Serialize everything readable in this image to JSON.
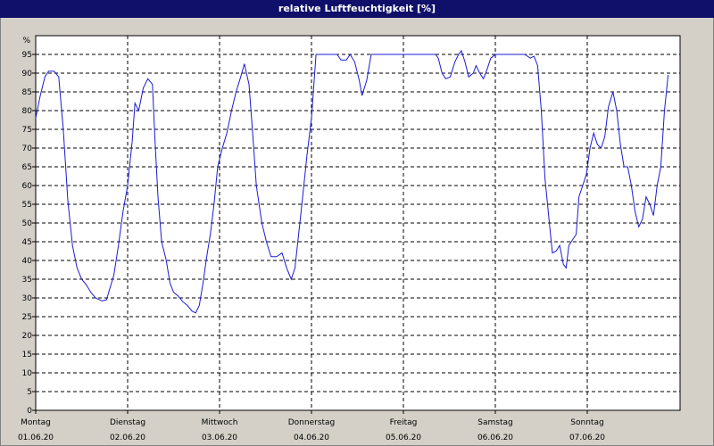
{
  "window": {
    "title": "relative Luftfeuchtigkeit [%]"
  },
  "colors": {
    "title_bar": "#10106a",
    "series": "#1b1bd6",
    "grid": "#000000",
    "plot_bg": "#ffffff",
    "frame_bg": "#d4d0c8"
  },
  "chart_data": {
    "type": "line",
    "title": "relative Luftfeuchtigkeit [%]",
    "ylabel": "%",
    "ylim": [
      0,
      100
    ],
    "yticks": [
      0,
      5,
      10,
      15,
      20,
      25,
      30,
      35,
      40,
      45,
      50,
      55,
      60,
      65,
      70,
      75,
      80,
      85,
      90,
      95
    ],
    "xlim": [
      0,
      7
    ],
    "grid": true,
    "x_ticks": [
      {
        "x": 0,
        "day": "Montag",
        "date": "01.06.20"
      },
      {
        "x": 1,
        "day": "Dienstag",
        "date": "02.06.20"
      },
      {
        "x": 2,
        "day": "Mittwoch",
        "date": "03.06.20"
      },
      {
        "x": 3,
        "day": "Donnerstag",
        "date": "04.06.20"
      },
      {
        "x": 4,
        "day": "Freitag",
        "date": "05.06.20"
      },
      {
        "x": 5,
        "day": "Samstag",
        "date": "06.06.20"
      },
      {
        "x": 6,
        "day": "Sonntag",
        "date": "07.06.20"
      }
    ],
    "series": [
      {
        "values": [
          [
            0.0,
            78
          ],
          [
            0.05,
            84
          ],
          [
            0.1,
            89
          ],
          [
            0.14,
            90.5
          ],
          [
            0.2,
            90.5
          ],
          [
            0.25,
            89
          ],
          [
            0.3,
            75
          ],
          [
            0.35,
            56
          ],
          [
            0.4,
            44
          ],
          [
            0.45,
            38
          ],
          [
            0.5,
            35
          ],
          [
            0.55,
            33.5
          ],
          [
            0.6,
            31.5
          ],
          [
            0.65,
            30
          ],
          [
            0.72,
            29.2
          ],
          [
            0.77,
            29.5
          ],
          [
            0.8,
            32
          ],
          [
            0.85,
            36
          ],
          [
            0.9,
            44
          ],
          [
            0.95,
            53
          ],
          [
            1.0,
            60
          ],
          [
            1.05,
            72
          ],
          [
            1.08,
            82
          ],
          [
            1.12,
            80
          ],
          [
            1.17,
            86
          ],
          [
            1.22,
            88.5
          ],
          [
            1.27,
            87
          ],
          [
            1.3,
            71
          ],
          [
            1.33,
            57
          ],
          [
            1.37,
            45
          ],
          [
            1.42,
            40
          ],
          [
            1.46,
            34
          ],
          [
            1.5,
            31.5
          ],
          [
            1.55,
            30.5
          ],
          [
            1.6,
            29
          ],
          [
            1.65,
            28
          ],
          [
            1.7,
            26.5
          ],
          [
            1.74,
            26
          ],
          [
            1.78,
            28
          ],
          [
            1.82,
            34
          ],
          [
            1.86,
            41
          ],
          [
            1.9,
            47
          ],
          [
            1.94,
            55
          ],
          [
            1.98,
            65
          ],
          [
            2.03,
            70
          ],
          [
            2.08,
            74
          ],
          [
            2.13,
            80
          ],
          [
            2.18,
            85
          ],
          [
            2.23,
            89
          ],
          [
            2.27,
            92.5
          ],
          [
            2.32,
            87
          ],
          [
            2.36,
            74
          ],
          [
            2.4,
            60
          ],
          [
            2.46,
            50
          ],
          [
            2.51,
            45
          ],
          [
            2.56,
            41
          ],
          [
            2.62,
            41
          ],
          [
            2.68,
            42
          ],
          [
            2.73,
            38
          ],
          [
            2.78,
            35
          ],
          [
            2.82,
            38
          ],
          [
            2.86,
            47
          ],
          [
            2.9,
            56
          ],
          [
            2.95,
            68
          ],
          [
            3.0,
            78
          ],
          [
            3.05,
            95
          ],
          [
            3.15,
            95
          ],
          [
            3.28,
            95
          ],
          [
            3.32,
            93.5
          ],
          [
            3.38,
            93.5
          ],
          [
            3.42,
            95
          ],
          [
            3.47,
            93
          ],
          [
            3.52,
            88
          ],
          [
            3.55,
            84
          ],
          [
            3.6,
            88
          ],
          [
            3.65,
            95
          ],
          [
            3.8,
            95
          ],
          [
            4.0,
            95
          ],
          [
            4.2,
            95
          ],
          [
            4.35,
            95
          ],
          [
            4.38,
            94
          ],
          [
            4.42,
            90
          ],
          [
            4.46,
            88.5
          ],
          [
            4.51,
            89
          ],
          [
            4.56,
            93
          ],
          [
            4.6,
            95
          ],
          [
            4.63,
            96
          ],
          [
            4.67,
            93
          ],
          [
            4.71,
            89
          ],
          [
            4.76,
            90
          ],
          [
            4.79,
            92
          ],
          [
            4.83,
            90
          ],
          [
            4.87,
            88.5
          ],
          [
            4.91,
            91
          ],
          [
            4.95,
            94
          ],
          [
            5.0,
            95
          ],
          [
            5.1,
            95
          ],
          [
            5.25,
            95
          ],
          [
            5.32,
            95
          ],
          [
            5.38,
            94
          ],
          [
            5.42,
            94.5
          ],
          [
            5.46,
            92
          ],
          [
            5.5,
            80
          ],
          [
            5.54,
            62
          ],
          [
            5.58,
            52
          ],
          [
            5.62,
            42
          ],
          [
            5.66,
            42.5
          ],
          [
            5.7,
            44
          ],
          [
            5.74,
            39
          ],
          [
            5.77,
            38
          ],
          [
            5.8,
            44
          ],
          [
            5.84,
            45.5
          ],
          [
            5.88,
            47
          ],
          [
            5.91,
            57
          ],
          [
            5.95,
            60
          ],
          [
            5.99,
            63
          ],
          [
            6.03,
            70
          ],
          [
            6.07,
            74
          ],
          [
            6.11,
            71
          ],
          [
            6.15,
            70
          ],
          [
            6.19,
            73
          ],
          [
            6.23,
            81
          ],
          [
            6.28,
            85
          ],
          [
            6.32,
            80
          ],
          [
            6.36,
            71
          ],
          [
            6.4,
            65
          ],
          [
            6.44,
            65
          ],
          [
            6.48,
            60
          ],
          [
            6.52,
            53
          ],
          [
            6.56,
            49
          ],
          [
            6.6,
            51
          ],
          [
            6.64,
            57
          ],
          [
            6.68,
            55
          ],
          [
            6.72,
            52
          ],
          [
            6.76,
            60
          ],
          [
            6.8,
            65
          ],
          [
            6.84,
            80
          ],
          [
            6.88,
            89.5
          ]
        ]
      }
    ]
  }
}
